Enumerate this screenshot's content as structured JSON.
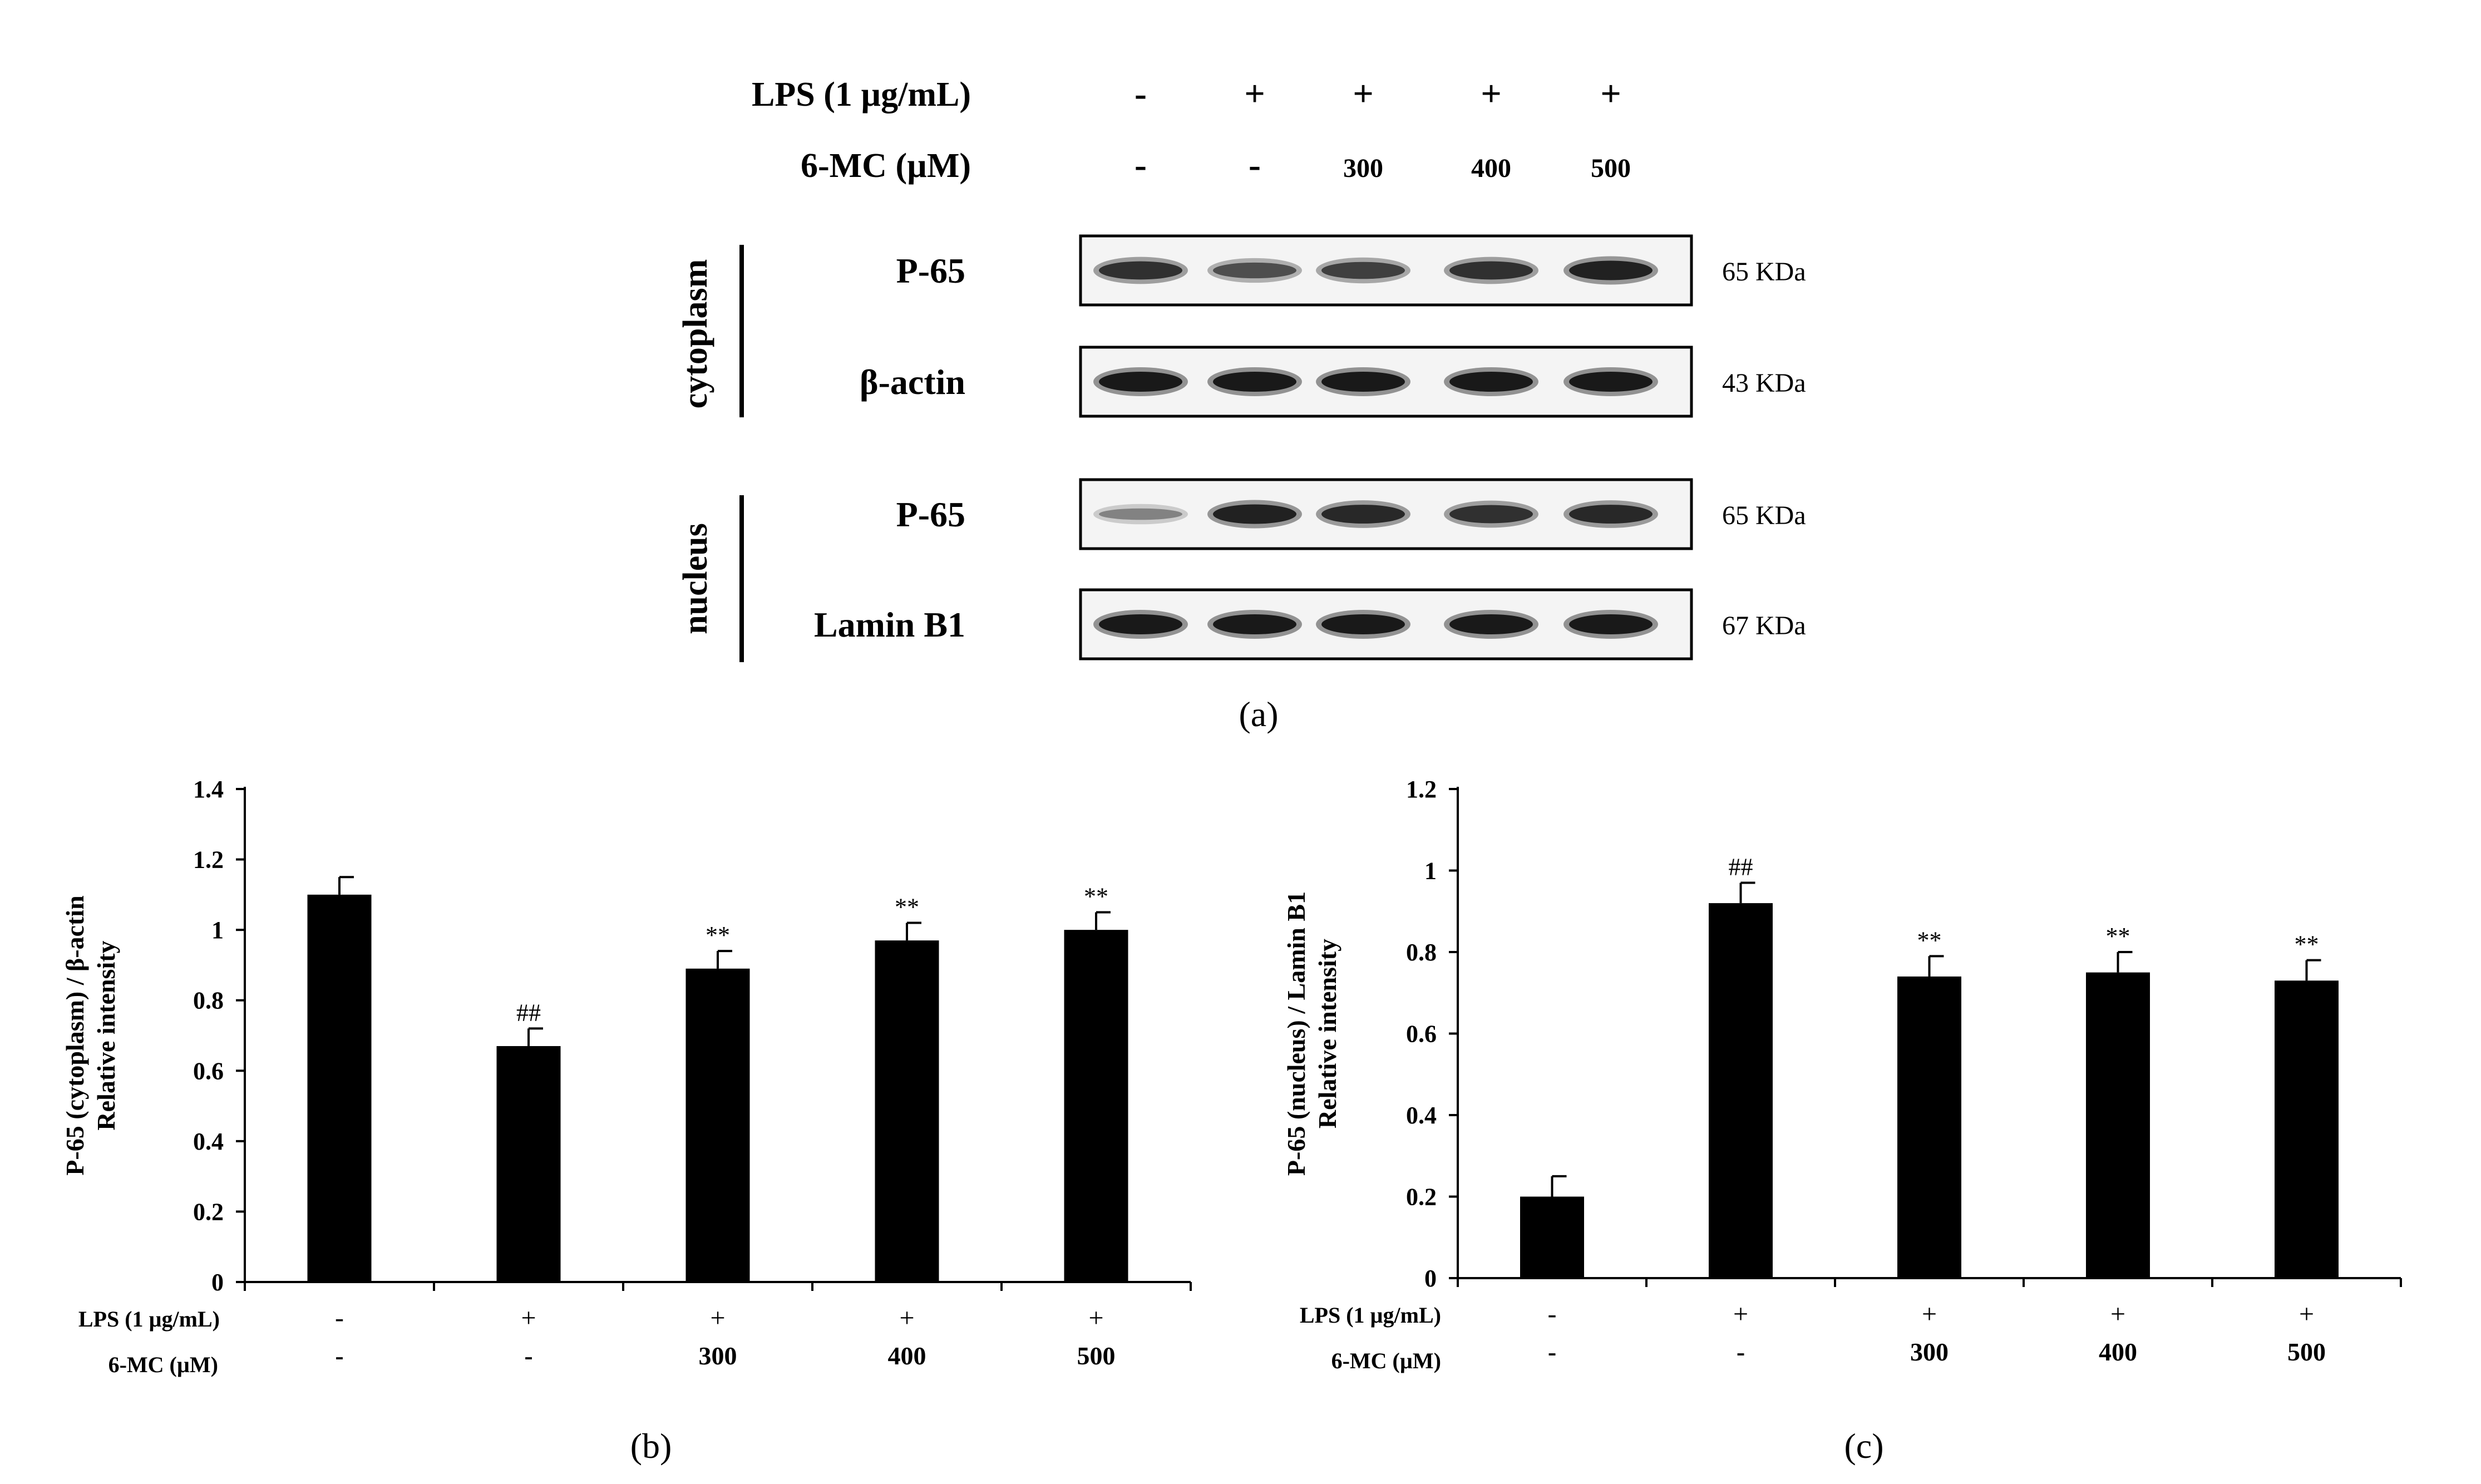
{
  "panel_a": {
    "rows": [
      {
        "label": "LPS (1 µg/mL)",
        "values": [
          "-",
          "+",
          "+",
          "+",
          "+"
        ]
      },
      {
        "label": "6-MC (µM)",
        "values": [
          "-",
          "-",
          "300",
          "400",
          "500"
        ]
      }
    ],
    "groups": [
      {
        "name": "cytoplasm",
        "blots": [
          {
            "label": "P-65",
            "size": "65 KDa",
            "intensity": [
              0.85,
              0.65,
              0.75,
              0.85,
              0.95
            ]
          },
          {
            "label": "β-actin",
            "size": "43 KDa",
            "intensity": [
              1,
              1,
              1,
              1,
              1
            ]
          }
        ]
      },
      {
        "name": "nucleus",
        "blots": [
          {
            "label": "P-65",
            "size": "65 KDa",
            "intensity": [
              0.3,
              0.95,
              0.9,
              0.85,
              0.9
            ]
          },
          {
            "label": "Lamin B1",
            "size": "67 KDa",
            "intensity": [
              1,
              1,
              1,
              1,
              1
            ]
          }
        ]
      }
    ],
    "caption": "(a)"
  },
  "chart_data": [
    {
      "type": "bar",
      "ylabel": "P-65 (cytoplasm) / β-actin",
      "ylabel2": "Relative intensity",
      "ylim": [
        0,
        1.4
      ],
      "yticks": [
        "0",
        "0.2",
        "0.4",
        "0.6",
        "0.8",
        "1",
        "1.2",
        "1.4"
      ],
      "ytick_values": [
        0,
        0.2,
        0.4,
        0.6,
        0.8,
        1,
        1.2,
        1.4
      ],
      "row_labels": [
        "LPS (1 µg/mL)",
        "6-MC (µM)"
      ],
      "lps": [
        "-",
        "+",
        "+",
        "+",
        "+"
      ],
      "mc": [
        "-",
        "-",
        "300",
        "400",
        "500"
      ],
      "values": [
        1.1,
        0.67,
        0.89,
        0.97,
        1.0
      ],
      "errors": [
        0.05,
        0.05,
        0.05,
        0.05,
        0.05
      ],
      "annotations": [
        "",
        "##",
        "**",
        "**",
        "**"
      ],
      "caption": "(b)"
    },
    {
      "type": "bar",
      "ylabel": "P-65 (nucleus) / Lamin B1",
      "ylabel2": "Relative intensity",
      "ylim": [
        0,
        1.2
      ],
      "yticks": [
        "0",
        "0.2",
        "0.4",
        "0.6",
        "0.8",
        "1",
        "1.2"
      ],
      "ytick_values": [
        0,
        0.2,
        0.4,
        0.6,
        0.8,
        1,
        1.2
      ],
      "row_labels": [
        "LPS (1 µg/mL)",
        "6-MC (µM)"
      ],
      "lps": [
        "-",
        "+",
        "+",
        "+",
        "+"
      ],
      "mc": [
        "-",
        "-",
        "300",
        "400",
        "500"
      ],
      "values": [
        0.2,
        0.92,
        0.74,
        0.75,
        0.73
      ],
      "errors": [
        0.05,
        0.05,
        0.05,
        0.05,
        0.05
      ],
      "annotations": [
        "",
        "##",
        "**",
        "**",
        "**"
      ],
      "caption": "(c)"
    }
  ]
}
